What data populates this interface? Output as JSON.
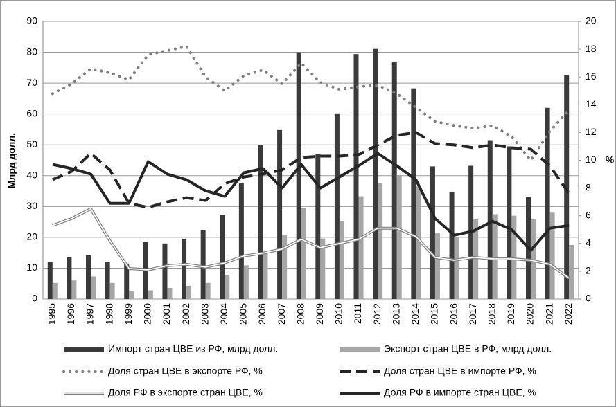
{
  "chart_data": {
    "type": "combo",
    "ylabel": "Млрд долл.",
    "y2label": "%",
    "categories": [
      "1995",
      "1996",
      "1997",
      "1998",
      "1999",
      "2000",
      "2001",
      "2002",
      "2003",
      "2004",
      "2005",
      "2006",
      "2007",
      "2008",
      "2009",
      "2010",
      "2011",
      "2012",
      "2013",
      "2014",
      "2015",
      "2016",
      "2017",
      "2018",
      "2019",
      "2020",
      "2021",
      "2022"
    ],
    "ylim": [
      0,
      90
    ],
    "yticks": [
      0,
      10,
      20,
      30,
      40,
      50,
      60,
      70,
      80,
      90
    ],
    "y2lim": [
      0,
      20
    ],
    "y2ticks": [
      0,
      2,
      4,
      6,
      8,
      10,
      12,
      14,
      16,
      18,
      20
    ],
    "grid": true,
    "series": [
      {
        "name": "Импорт стран ЦВЕ из РФ, млрд долл.",
        "type": "bar",
        "color": "#3a3a3a",
        "values": [
          12,
          13.5,
          14.2,
          12,
          11.5,
          18.5,
          18,
          19.3,
          22.3,
          27.2,
          37.5,
          50,
          54.8,
          80,
          47,
          60.2,
          79.4,
          81.1,
          77,
          68.3,
          43,
          34.8,
          43.2,
          51.5,
          49.5,
          33.2,
          62,
          72.6
        ]
      },
      {
        "name": "Экспорт стран ЦВЕ в РФ, млрд долл.",
        "type": "bar",
        "color": "#a6a6a6",
        "values": [
          5.2,
          6,
          7.3,
          5.2,
          2.5,
          2.8,
          3.6,
          4.3,
          5.2,
          7.8,
          10.9,
          14.8,
          20.7,
          29.5,
          19.6,
          25.3,
          33.3,
          37.5,
          40.2,
          36.5,
          21.3,
          20,
          25.8,
          27.5,
          27,
          25.8,
          28,
          17.5
        ]
      },
      {
        "name": "Доля стран ЦВЕ в экспорте РФ, %",
        "type": "line",
        "axis": "y2",
        "color": "#7f7f7f",
        "style": "dotted",
        "values": [
          14.8,
          15.5,
          16.6,
          16.3,
          15.8,
          17.6,
          17.9,
          18.2,
          16,
          15,
          16.1,
          16.5,
          15.5,
          17,
          15.6,
          15.1,
          15.3,
          15.4,
          14.8,
          13.8,
          12.8,
          12.5,
          12.3,
          12.5,
          11.7,
          10,
          12.1,
          13.6
        ]
      },
      {
        "name": "Доля стран ЦВЕ в импорте РФ, %",
        "type": "line",
        "axis": "y2",
        "color": "#262626",
        "style": "dashed",
        "values": [
          8.6,
          9.2,
          10.5,
          9.3,
          6.9,
          6.6,
          7,
          7.3,
          7.1,
          8.3,
          8.8,
          9,
          9.3,
          10.2,
          10.3,
          10.3,
          10.4,
          11.1,
          11.8,
          12,
          11.2,
          11.1,
          10.9,
          11.1,
          10.9,
          10.8,
          9.6,
          7.6
        ]
      },
      {
        "name": "Доля РФ в экспорте стран ЦВЕ, %",
        "type": "line",
        "axis": "y2",
        "color": "#7f7f7f",
        "style": "double",
        "values": [
          5.3,
          5.8,
          6.5,
          4.2,
          2.2,
          2.1,
          2.4,
          2.5,
          2.3,
          2.6,
          3.1,
          3.3,
          3.6,
          4.3,
          3.7,
          4,
          4.3,
          5.1,
          5.1,
          4.5,
          3,
          2.8,
          3,
          2.9,
          2.9,
          2.8,
          2.5,
          1.5
        ]
      },
      {
        "name": "Доля РФ в импорте стран ЦВЕ, %",
        "type": "line",
        "axis": "y2",
        "color": "#262626",
        "style": "solid",
        "values": [
          9.7,
          9.4,
          9,
          6.9,
          6.9,
          9.9,
          9,
          8.6,
          7.8,
          7.4,
          9.1,
          9.4,
          8,
          9.7,
          8,
          8.8,
          9.6,
          10.5,
          9.6,
          8.6,
          5.8,
          4.6,
          4.9,
          5.6,
          5,
          3.5,
          5.1,
          5.3
        ]
      }
    ]
  }
}
